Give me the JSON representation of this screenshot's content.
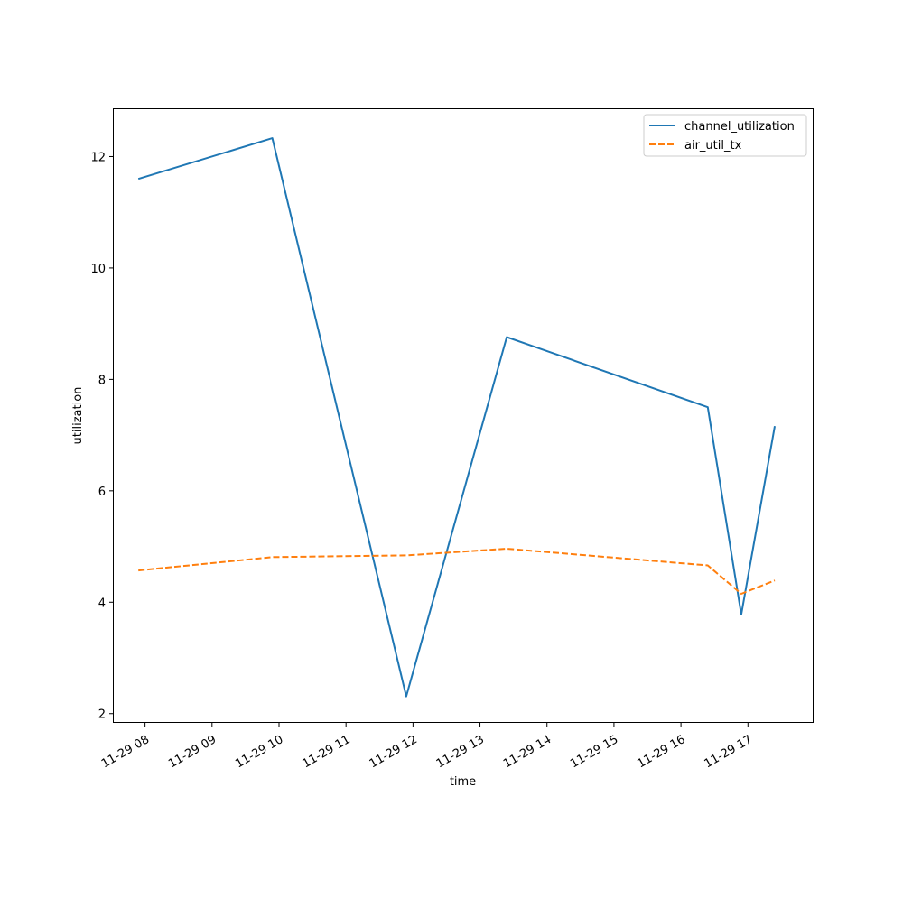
{
  "chart_data": {
    "type": "line",
    "title": "",
    "xlabel": "time",
    "ylabel": "utilization",
    "x_domain": [
      "11-29 07:32",
      "11-29 17:58"
    ],
    "ylim": [
      1.85,
      12.85
    ],
    "x_ticks": [
      {
        "t": "11-29 08:00",
        "label": "11-29 08"
      },
      {
        "t": "11-29 09:00",
        "label": "11-29 09"
      },
      {
        "t": "11-29 10:00",
        "label": "11-29 10"
      },
      {
        "t": "11-29 11:00",
        "label": "11-29 11"
      },
      {
        "t": "11-29 12:00",
        "label": "11-29 12"
      },
      {
        "t": "11-29 13:00",
        "label": "11-29 13"
      },
      {
        "t": "11-29 14:00",
        "label": "11-29 14"
      },
      {
        "t": "11-29 15:00",
        "label": "11-29 15"
      },
      {
        "t": "11-29 16:00",
        "label": "11-29 16"
      },
      {
        "t": "11-29 17:00",
        "label": "11-29 17"
      }
    ],
    "y_ticks": [
      2,
      4,
      6,
      8,
      10,
      12
    ],
    "grid": false,
    "legend": "top-right",
    "series": [
      {
        "name": "channel_utilization",
        "color": "#1f77b4",
        "dash": "solid",
        "points": [
          {
            "x": "11-29 07:54",
            "y": 11.6
          },
          {
            "x": "11-29 09:54",
            "y": 12.33
          },
          {
            "x": "11-29 11:54",
            "y": 2.31
          },
          {
            "x": "11-29 13:24",
            "y": 8.76
          },
          {
            "x": "11-29 16:24",
            "y": 7.5
          },
          {
            "x": "11-29 16:54",
            "y": 3.78
          },
          {
            "x": "11-29 17:24",
            "y": 7.16
          }
        ]
      },
      {
        "name": "air_util_tx",
        "color": "#ff7f0e",
        "dash": "dashed",
        "points": [
          {
            "x": "11-29 07:54",
            "y": 4.57
          },
          {
            "x": "11-29 09:54",
            "y": 4.81
          },
          {
            "x": "11-29 11:54",
            "y": 4.84
          },
          {
            "x": "11-29 13:24",
            "y": 4.96
          },
          {
            "x": "11-29 16:24",
            "y": 4.66
          },
          {
            "x": "11-29 16:54",
            "y": 4.15
          },
          {
            "x": "11-29 17:24",
            "y": 4.39
          }
        ]
      }
    ]
  }
}
